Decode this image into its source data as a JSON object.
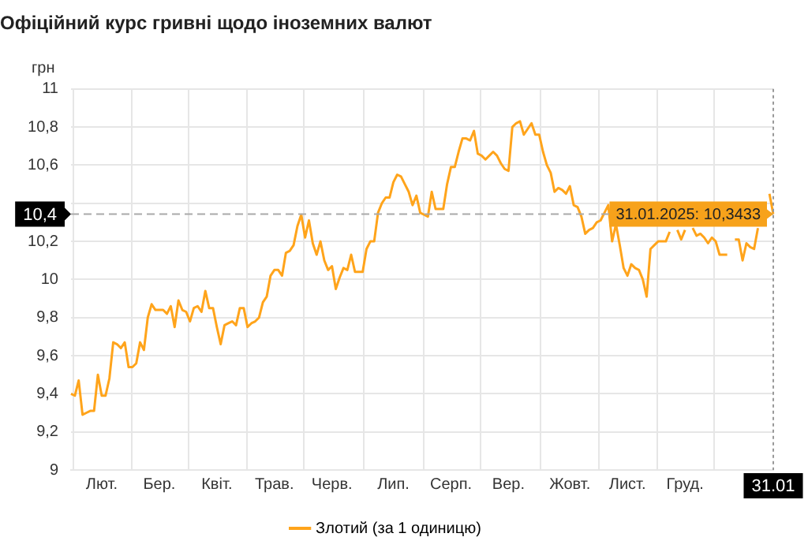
{
  "chart_data": {
    "type": "line",
    "title": "Офіційний курс гривні щодо іноземних валют",
    "ylabel": "грн",
    "categories": [
      null,
      null,
      null,
      null,
      null,
      null,
      null,
      null,
      "Лют.",
      null,
      null,
      null,
      null,
      null,
      null,
      null,
      null,
      null,
      null,
      null,
      null,
      null,
      null,
      "Бер.",
      null,
      null,
      null,
      null,
      null,
      null,
      null,
      null,
      null,
      null,
      null,
      null,
      null,
      null,
      "Квіт.",
      null,
      null,
      null,
      null,
      null,
      null,
      null,
      null,
      null,
      null,
      null,
      null,
      null,
      null,
      "Трав.",
      null,
      null,
      null,
      null,
      null,
      null,
      null,
      null,
      null,
      null,
      null,
      null,
      null,
      null,
      "Черв.",
      null,
      null,
      null,
      null,
      null,
      null,
      null,
      null,
      null,
      null,
      null,
      null,
      null,
      null,
      null,
      "Лип.",
      null,
      null,
      null,
      null,
      null,
      null,
      null,
      null,
      null,
      null,
      null,
      null,
      null,
      null,
      "Серп.",
      null,
      null,
      null,
      null,
      null,
      null,
      null,
      null,
      null,
      null,
      null,
      null,
      null,
      null,
      "Вер.",
      null,
      null,
      null,
      null,
      null,
      null,
      null,
      null,
      null,
      null,
      null,
      null,
      null,
      null,
      null,
      "Жовт.",
      null,
      null,
      null,
      null,
      null,
      null,
      null,
      null,
      null,
      null,
      null,
      null,
      null,
      null,
      "Лист.",
      null,
      null,
      null,
      null,
      null,
      null,
      null,
      null,
      null,
      null,
      null,
      null,
      null,
      null,
      "Груд.",
      null,
      null,
      null,
      null,
      null,
      null,
      null,
      null,
      null,
      null,
      null,
      null,
      null,
      null,
      null,
      null,
      null,
      null,
      null,
      null,
      null,
      null,
      "31.01"
    ],
    "series": [
      {
        "name": "Злотий (за 1 одиницю)",
        "color": "#ffa41b",
        "values": [
          9.4,
          9.39,
          9.47,
          9.29,
          9.3,
          9.31,
          9.31,
          9.5,
          9.39,
          9.39,
          9.48,
          9.67,
          9.66,
          9.64,
          9.67,
          9.54,
          9.54,
          9.56,
          9.67,
          9.63,
          9.8,
          9.87,
          9.84,
          9.84,
          9.84,
          9.82,
          9.86,
          9.75,
          9.89,
          9.84,
          9.83,
          9.78,
          9.85,
          9.86,
          9.83,
          9.94,
          9.85,
          9.85,
          9.75,
          9.66,
          9.76,
          9.77,
          9.78,
          9.76,
          9.85,
          9.85,
          9.75,
          9.77,
          9.78,
          9.8,
          9.88,
          9.91,
          10.02,
          10.05,
          10.05,
          10.02,
          10.14,
          10.15,
          10.18,
          10.28,
          10.34,
          10.22,
          10.31,
          10.19,
          10.13,
          10.2,
          10.1,
          10.05,
          10.07,
          9.95,
          10.01,
          10.06,
          10.05,
          10.13,
          10.04,
          10.04,
          10.04,
          10.16,
          10.2,
          10.2,
          10.35,
          10.4,
          10.43,
          10.43,
          10.51,
          10.55,
          10.54,
          10.5,
          10.46,
          10.39,
          10.44,
          10.35,
          10.34,
          10.33,
          10.46,
          10.37,
          10.37,
          10.37,
          10.5,
          10.59,
          10.59,
          10.67,
          10.74,
          10.74,
          10.73,
          10.78,
          10.66,
          10.65,
          10.63,
          10.65,
          10.67,
          10.65,
          10.61,
          10.58,
          10.57,
          10.8,
          10.82,
          10.83,
          10.76,
          10.79,
          10.82,
          10.76,
          10.76,
          10.67,
          10.6,
          10.56,
          10.46,
          10.48,
          10.47,
          10.45,
          10.49,
          10.39,
          10.38,
          10.33,
          10.24,
          10.26,
          10.27,
          10.3,
          10.31,
          10.35,
          10.39,
          10.2,
          10.29,
          10.18,
          10.06,
          10.02,
          10.08,
          10.06,
          10.05,
          10.0,
          9.91,
          10.16,
          10.18,
          10.2,
          10.2,
          10.2,
          10.25,
          null,
          10.26,
          10.21,
          10.26,
          null,
          10.27,
          10.23,
          10.24,
          10.22,
          10.19,
          10.22,
          10.2,
          10.13,
          10.13,
          10.13,
          null,
          10.21,
          10.21,
          10.1,
          10.19,
          10.17,
          10.16,
          10.27,
          null,
          null,
          10.45,
          10.3433
        ]
      }
    ],
    "ylim": [
      9,
      11
    ],
    "yticks": [
      9,
      {
        "value": 9.2,
        "label": "9,2"
      },
      {
        "value": 9.4,
        "label": "9,4"
      },
      {
        "value": 9.6,
        "label": "9,6"
      },
      {
        "value": 9.8,
        "label": "9,8"
      },
      10,
      {
        "value": 10.2,
        "label": "10,2"
      },
      {
        "value": 10.4,
        "label": null
      },
      {
        "value": 10.6,
        "label": "10,6"
      },
      {
        "value": 10.8,
        "label": "10,8"
      },
      11
    ],
    "ref_lines": [
      {
        "axis": "y",
        "value": 10.3433,
        "line_style": "dashed",
        "color": "#aaaaaa"
      },
      {
        "axis": "x",
        "value": "31.01",
        "line_style": "dotted",
        "color": "#999999"
      }
    ],
    "annotations": [
      "10,4",
      {
        "text": "31.01.2025: 10,3433",
        "x": "31.01",
        "y": 10.3433
      }
    ],
    "grid": true,
    "legend": "bottom",
    "marker": "none",
    "line_style": "solid"
  }
}
